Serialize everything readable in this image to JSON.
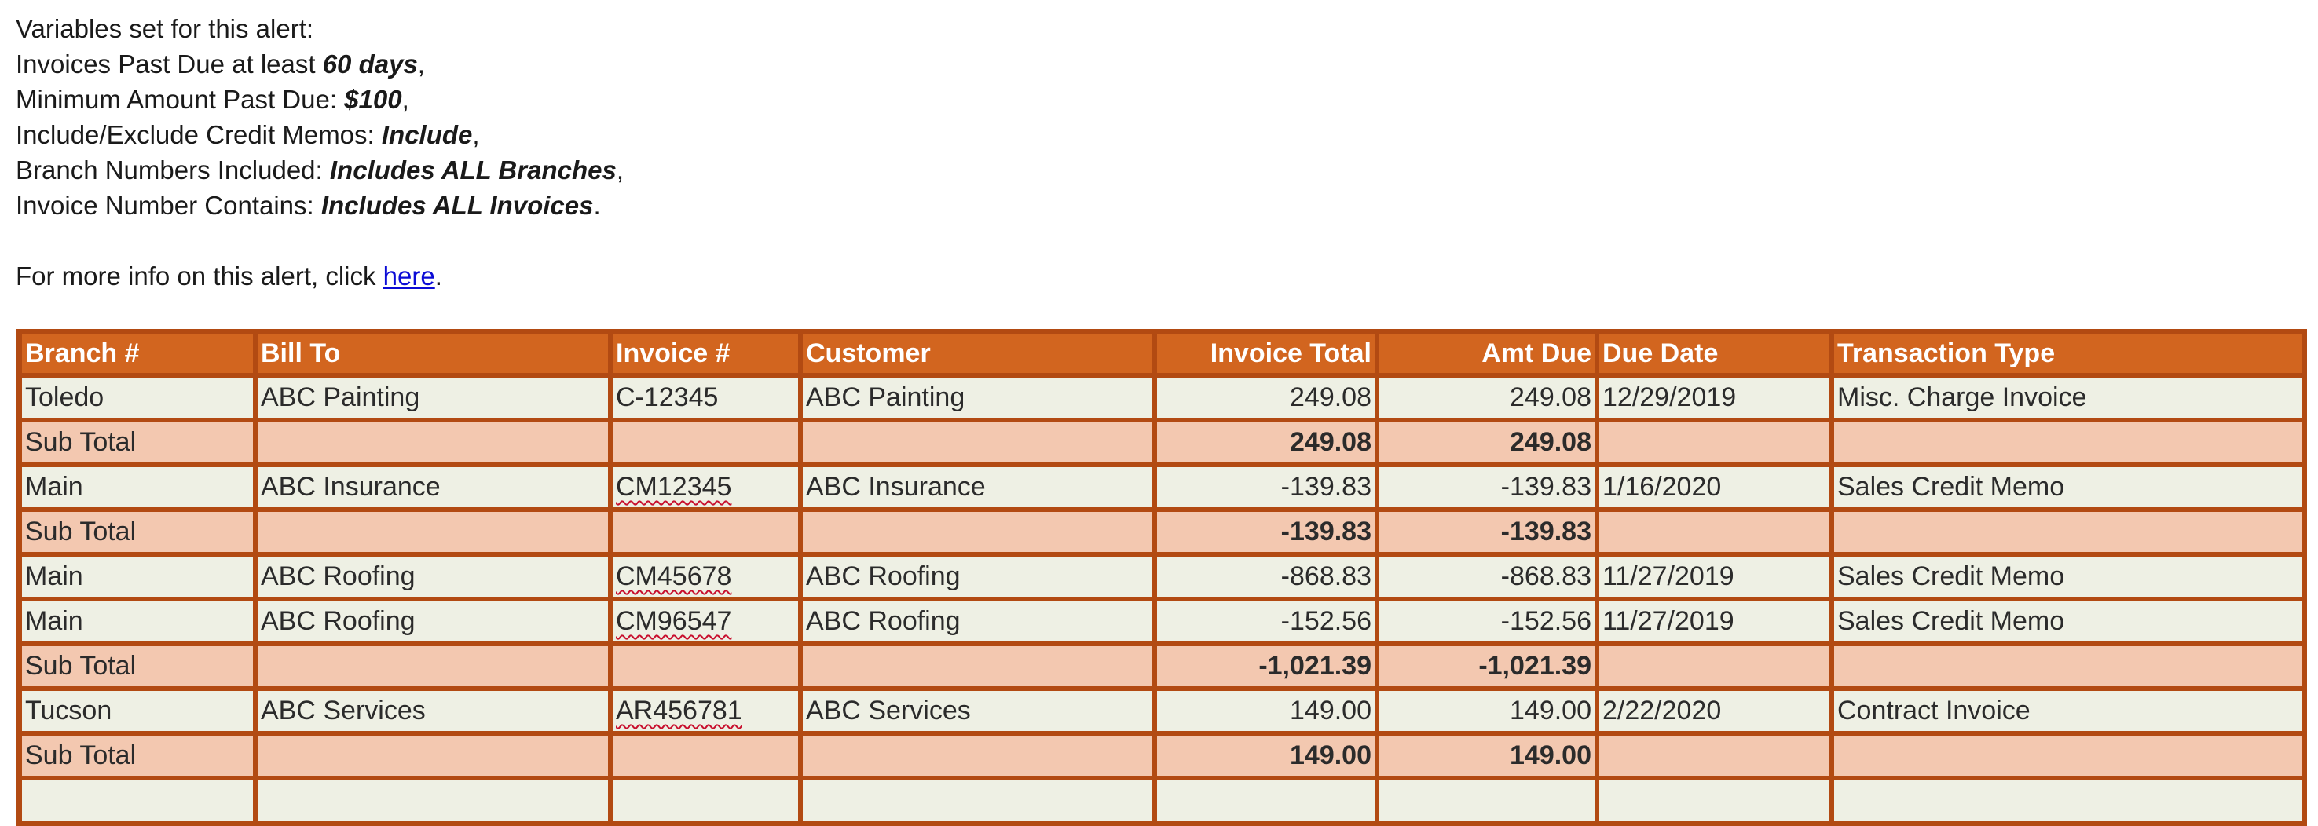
{
  "intro": {
    "heading": "Variables set for this alert:",
    "vars": [
      {
        "label": "Invoices Past Due at least ",
        "value": "60 days",
        "suffix": ","
      },
      {
        "label": "Minimum Amount Past Due: ",
        "value": "$100",
        "suffix": ","
      },
      {
        "label": "Include/Exclude Credit Memos:  ",
        "value": "Include",
        "suffix": ","
      },
      {
        "label": "Branch Numbers Included:  ",
        "value": "Includes ALL Branches",
        "suffix": ","
      },
      {
        "label": "Invoice Number Contains:  ",
        "value": "Includes ALL Invoices",
        "suffix": "."
      }
    ],
    "more_info_prefix": "For more info on this alert, click ",
    "more_info_link": "here",
    "more_info_suffix": "."
  },
  "table": {
    "headers": [
      "Branch #",
      "Bill To",
      "Invoice #",
      "Customer",
      "Invoice Total",
      "Amt Due",
      "Due Date",
      "Transaction Type"
    ],
    "rows": [
      {
        "type": "data",
        "cells": [
          "Toledo",
          "ABC Painting",
          "C-12345",
          "ABC Painting",
          "249.08",
          "249.08",
          "12/29/2019",
          "Misc. Charge Invoice"
        ]
      },
      {
        "type": "subtotal",
        "cells": [
          "Sub Total",
          "",
          "",
          "",
          "249.08",
          "249.08",
          "",
          ""
        ]
      },
      {
        "type": "data",
        "cells": [
          "Main",
          "ABC Insurance",
          "CM12345",
          "ABC Insurance",
          "-139.83",
          "-139.83",
          "1/16/2020",
          "Sales Credit Memo"
        ]
      },
      {
        "type": "subtotal",
        "cells": [
          "Sub Total",
          "",
          "",
          "",
          "-139.83",
          "-139.83",
          "",
          ""
        ]
      },
      {
        "type": "data",
        "cells": [
          "Main",
          "ABC Roofing",
          "CM45678",
          "ABC Roofing",
          "-868.83",
          "-868.83",
          "11/27/2019",
          "Sales Credit Memo"
        ]
      },
      {
        "type": "data",
        "cells": [
          "Main",
          "ABC Roofing",
          "CM96547",
          "ABC Roofing",
          "-152.56",
          "-152.56",
          "11/27/2019",
          "Sales Credit Memo"
        ]
      },
      {
        "type": "subtotal",
        "cells": [
          "Sub Total",
          "",
          "",
          "",
          "-1,021.39",
          "-1,021.39",
          "",
          ""
        ]
      },
      {
        "type": "data",
        "cells": [
          "Tucson",
          "ABC Services",
          "AR456781",
          "ABC Services",
          "149.00",
          "149.00",
          "2/22/2020",
          "Contract Invoice"
        ]
      },
      {
        "type": "subtotal",
        "cells": [
          "Sub Total",
          "",
          "",
          "",
          "149.00",
          "149.00",
          "",
          ""
        ]
      },
      {
        "type": "data",
        "cells": [
          "",
          "",
          "",
          "",
          "",
          "",
          "",
          ""
        ]
      }
    ]
  },
  "colors": {
    "header_bg": "#d2651f",
    "border": "#b24a12",
    "data_row_bg": "#eef0e4",
    "subtotal_row_bg": "#f3c8b0",
    "link": "#0b0bd6",
    "spellcheck_underline": "#c8102e"
  }
}
